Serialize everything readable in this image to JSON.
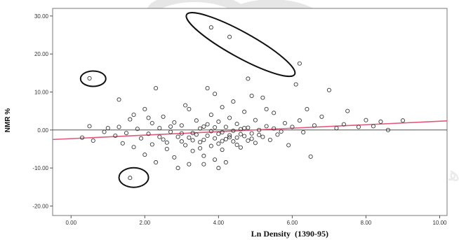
{
  "chart_data": {
    "type": "scatter",
    "title": "",
    "xlabel": "Ln Density",
    "xlabel_suffix": "(1390-95)",
    "ylabel": "NMR %",
    "xlim": [
      -0.5,
      10.2
    ],
    "ylim": [
      -22.5,
      32.0
    ],
    "x_ticks": [
      "0.00",
      "2.00",
      "4.00",
      "6.00",
      "8.00",
      "10.00"
    ],
    "x_tick_values": [
      0,
      2,
      4,
      6,
      8,
      10
    ],
    "y_ticks": [
      "30.00",
      "20.00",
      "10.00",
      "0.00",
      "-10.00",
      "-20.00"
    ],
    "y_tick_values": [
      30,
      20,
      10,
      0,
      -10,
      -20
    ],
    "grid": false,
    "reference_lines": [
      {
        "type": "horizontal",
        "y": 0,
        "color": "#555555"
      },
      {
        "type": "fit",
        "x": [
          -0.5,
          10.2
        ],
        "y": [
          -2.5,
          2.4
        ],
        "color": "#e0587a"
      }
    ],
    "highlights": [
      {
        "shape": "ellipse",
        "cx": 0.6,
        "cy": 13.5
      },
      {
        "shape": "ellipse",
        "cx": 1.7,
        "cy": -12.5
      },
      {
        "shape": "ellipse",
        "cx": 4.6,
        "cy": 22.5
      }
    ],
    "series": [
      {
        "points": [
          [
            0.5,
            13.6
          ],
          [
            1.6,
            -12.6
          ],
          [
            3.8,
            27.0
          ],
          [
            4.3,
            24.5
          ],
          [
            6.2,
            17.5
          ],
          [
            0.5,
            1.0
          ],
          [
            0.6,
            -2.8
          ],
          [
            0.3,
            -2.0
          ],
          [
            0.9,
            -0.5
          ],
          [
            1.0,
            0.5
          ],
          [
            1.2,
            -1.5
          ],
          [
            1.3,
            0.8
          ],
          [
            1.4,
            -3.5
          ],
          [
            1.5,
            -0.8
          ],
          [
            1.6,
            2.8
          ],
          [
            1.7,
            -4.5
          ],
          [
            1.8,
            0.3
          ],
          [
            1.9,
            -2.2
          ],
          [
            2.0,
            5.5
          ],
          [
            2.0,
            -6.5
          ],
          [
            2.1,
            -1.0
          ],
          [
            2.2,
            1.8
          ],
          [
            2.2,
            -3.8
          ],
          [
            2.3,
            -8.5
          ],
          [
            2.4,
            0.5
          ],
          [
            2.5,
            -2.5
          ],
          [
            2.5,
            3.5
          ],
          [
            2.6,
            -5.0
          ],
          [
            2.7,
            -0.5
          ],
          [
            2.8,
            2.0
          ],
          [
            2.8,
            -7.2
          ],
          [
            2.9,
            -1.8
          ],
          [
            3.0,
            -3.0
          ],
          [
            3.0,
            1.2
          ],
          [
            3.1,
            -4.0
          ],
          [
            3.1,
            6.5
          ],
          [
            3.2,
            -2.0
          ],
          [
            3.2,
            -9.0
          ],
          [
            3.3,
            -0.8
          ],
          [
            3.3,
            -5.5
          ],
          [
            3.4,
            2.5
          ],
          [
            3.4,
            -1.2
          ],
          [
            3.5,
            -3.2
          ],
          [
            3.5,
            0.4
          ],
          [
            3.6,
            -2.6
          ],
          [
            3.6,
            -6.8
          ],
          [
            3.7,
            1.5
          ],
          [
            3.7,
            -1.5
          ],
          [
            3.8,
            -0.3
          ],
          [
            3.8,
            -4.2
          ],
          [
            3.8,
            4.0
          ],
          [
            3.9,
            -2.2
          ],
          [
            3.9,
            -7.8
          ],
          [
            3.9,
            9.5
          ],
          [
            4.0,
            -1.0
          ],
          [
            4.0,
            -3.6
          ],
          [
            4.0,
            2.2
          ],
          [
            4.1,
            -0.6
          ],
          [
            4.1,
            -5.2
          ],
          [
            4.1,
            6.0
          ],
          [
            4.2,
            -2.4
          ],
          [
            4.2,
            0.8
          ],
          [
            4.2,
            -8.5
          ],
          [
            4.3,
            -1.4
          ],
          [
            4.3,
            3.2
          ],
          [
            4.4,
            -3.0
          ],
          [
            4.4,
            -0.2
          ],
          [
            4.5,
            -2.0
          ],
          [
            4.5,
            1.6
          ],
          [
            4.6,
            -4.6
          ],
          [
            4.6,
            0.2
          ],
          [
            4.7,
            -1.6
          ],
          [
            4.7,
            4.8
          ],
          [
            4.8,
            -2.8
          ],
          [
            4.8,
            0.6
          ],
          [
            4.9,
            -0.9
          ],
          [
            5.0,
            2.6
          ],
          [
            5.0,
            -3.4
          ],
          [
            5.1,
            0.0
          ],
          [
            5.2,
            -1.8
          ],
          [
            5.2,
            8.5
          ],
          [
            5.3,
            1.0
          ],
          [
            5.4,
            -2.6
          ],
          [
            5.5,
            0.4
          ],
          [
            5.5,
            4.5
          ],
          [
            5.6,
            -1.2
          ],
          [
            5.8,
            1.8
          ],
          [
            5.9,
            -4.0
          ],
          [
            6.0,
            0.8
          ],
          [
            6.1,
            12.0
          ],
          [
            6.2,
            2.5
          ],
          [
            6.3,
            -0.6
          ],
          [
            6.4,
            5.5
          ],
          [
            6.5,
            -7.0
          ],
          [
            6.6,
            1.2
          ],
          [
            6.8,
            3.5
          ],
          [
            7.0,
            10.5
          ],
          [
            7.2,
            0.5
          ],
          [
            7.4,
            1.5
          ],
          [
            7.5,
            5.0
          ],
          [
            7.8,
            0.8
          ],
          [
            8.0,
            2.6
          ],
          [
            8.2,
            1.0
          ],
          [
            8.4,
            2.2
          ],
          [
            8.6,
            0.0
          ],
          [
            9.0,
            2.5
          ],
          [
            2.3,
            11.0
          ],
          [
            3.7,
            11.0
          ],
          [
            4.8,
            13.5
          ],
          [
            4.9,
            9.0
          ],
          [
            1.3,
            8.0
          ],
          [
            1.7,
            4.0
          ],
          [
            3.2,
            5.5
          ],
          [
            4.4,
            7.5
          ],
          [
            5.3,
            5.5
          ],
          [
            2.9,
            -10.0
          ],
          [
            3.6,
            -9.0
          ],
          [
            4.0,
            -10.0
          ],
          [
            2.1,
            3.2
          ],
          [
            2.4,
            -1.8
          ],
          [
            2.6,
            -3.3
          ],
          [
            2.7,
            0.9
          ],
          [
            3.0,
            -0.9
          ],
          [
            3.3,
            -2.7
          ],
          [
            3.5,
            -4.8
          ],
          [
            3.6,
            0.9
          ],
          [
            3.9,
            0.7
          ],
          [
            4.1,
            -2.9
          ],
          [
            4.3,
            -1.9
          ],
          [
            4.5,
            -3.9
          ],
          [
            4.6,
            -1.1
          ],
          [
            4.7,
            0.5
          ],
          [
            4.9,
            -2.3
          ],
          [
            5.1,
            -1.3
          ],
          [
            5.7,
            -0.4
          ]
        ]
      }
    ]
  }
}
